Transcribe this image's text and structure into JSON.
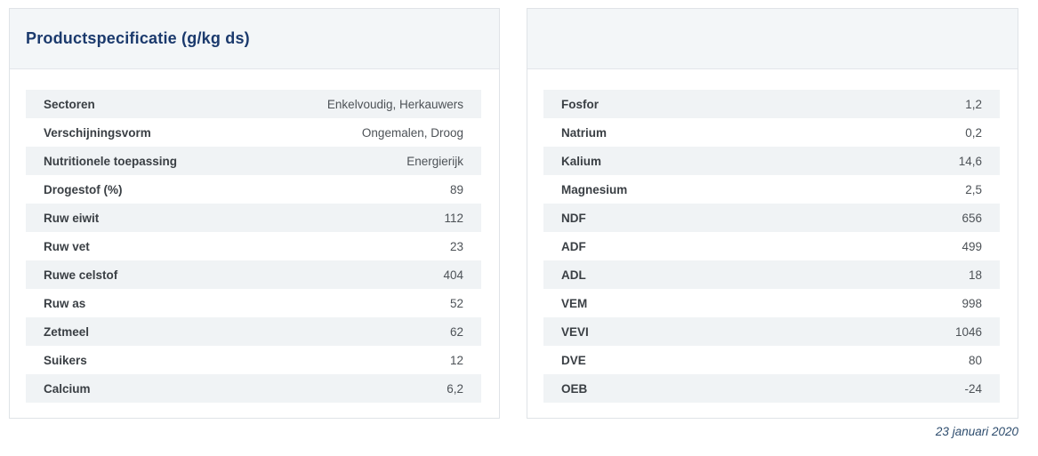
{
  "left_panel": {
    "title": "Productspecificatie (g/kg ds)",
    "rows": [
      {
        "label": "Sectoren",
        "value": "Enkelvoudig, Herkauwers"
      },
      {
        "label": "Verschijningsvorm",
        "value": "Ongemalen, Droog"
      },
      {
        "label": "Nutritionele toepassing",
        "value": "Energierijk"
      },
      {
        "label": "Drogestof (%)",
        "value": "89"
      },
      {
        "label": "Ruw eiwit",
        "value": "112"
      },
      {
        "label": "Ruw vet",
        "value": "23"
      },
      {
        "label": "Ruwe celstof",
        "value": "404"
      },
      {
        "label": "Ruw as",
        "value": "52"
      },
      {
        "label": "Zetmeel",
        "value": "62"
      },
      {
        "label": "Suikers",
        "value": "12"
      },
      {
        "label": "Calcium",
        "value": "6,2"
      }
    ]
  },
  "right_panel": {
    "rows": [
      {
        "label": "Fosfor",
        "value": "1,2"
      },
      {
        "label": "Natrium",
        "value": "0,2"
      },
      {
        "label": "Kalium",
        "value": "14,6"
      },
      {
        "label": "Magnesium",
        "value": "2,5"
      },
      {
        "label": "NDF",
        "value": "656"
      },
      {
        "label": "ADF",
        "value": "499"
      },
      {
        "label": "ADL",
        "value": "18"
      },
      {
        "label": "VEM",
        "value": "998"
      },
      {
        "label": "VEVI",
        "value": "1046"
      },
      {
        "label": "DVE",
        "value": "80"
      },
      {
        "label": "OEB",
        "value": "-24"
      }
    ]
  },
  "footer": {
    "date": "23 januari 2020"
  },
  "colors": {
    "title": "#1b3a6d",
    "stripe": "#f0f3f5",
    "header_band": "#f3f6f8",
    "card_border": "#dfe3e7",
    "label_text": "#3a3f44",
    "value_text": "#4d5257",
    "date_text": "#2e4d6e"
  }
}
